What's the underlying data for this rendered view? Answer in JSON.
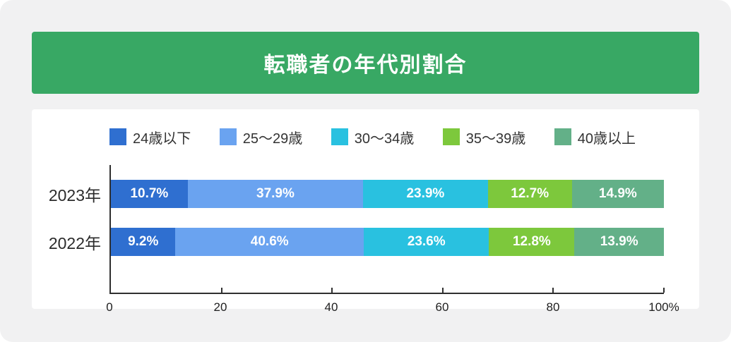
{
  "header": {
    "title": "転職者の年代別割合",
    "bg_color": "#38a864",
    "text_color": "#ffffff"
  },
  "colors": {
    "card_bg": "#f1f1f2",
    "panel_bg": "#ffffff",
    "axis": "#2f2f2f"
  },
  "chart_data": {
    "type": "bar",
    "orientation": "horizontal",
    "stacked": true,
    "title": "転職者の年代別割合",
    "categories": [
      "2023年",
      "2022年"
    ],
    "series": [
      {
        "name": "24歳以下",
        "color": "#2f6fd0",
        "values": [
          10.7,
          9.2
        ]
      },
      {
        "name": "25〜29歳",
        "color": "#6aa3f0",
        "values": [
          37.9,
          40.6
        ]
      },
      {
        "name": "30〜34歳",
        "color": "#29c1e0",
        "values": [
          23.9,
          23.6
        ]
      },
      {
        "name": "35〜39歳",
        "color": "#7dc83c",
        "values": [
          12.7,
          12.8
        ]
      },
      {
        "name": "40歳以上",
        "color": "#63b088",
        "values": [
          14.9,
          13.9
        ]
      }
    ],
    "value_suffix": "%",
    "xlabel": "",
    "ylabel": "",
    "xlim": [
      0,
      100
    ],
    "xtick_values": [
      0,
      20,
      40,
      60,
      80,
      100
    ],
    "xtick_labels": [
      "0",
      "20",
      "40",
      "60",
      "80",
      "100%"
    ],
    "legend_position": "top",
    "grid": false
  }
}
